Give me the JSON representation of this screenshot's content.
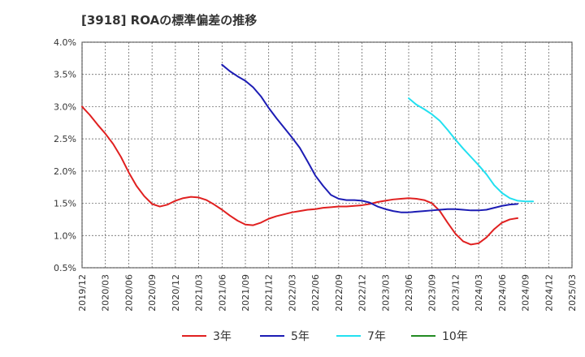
{
  "chart_data": {
    "type": "line",
    "title": "[3918]  ROAの標準偏差の推移",
    "xlabel": "",
    "ylabel": "",
    "ylim": [
      0.5,
      4.0
    ],
    "yticks": [
      0.5,
      1.0,
      1.5,
      2.0,
      2.5,
      3.0,
      3.5,
      4.0
    ],
    "ytick_labels": [
      "0.5%",
      "1.0%",
      "1.5%",
      "2.0%",
      "2.5%",
      "3.0%",
      "3.5%",
      "4.0%"
    ],
    "xticks": [
      "2019/12",
      "2020/03",
      "2020/06",
      "2020/09",
      "2020/12",
      "2021/03",
      "2021/06",
      "2021/09",
      "2021/12",
      "2022/03",
      "2022/06",
      "2022/09",
      "2022/12",
      "2023/03",
      "2023/06",
      "2023/09",
      "2023/12",
      "2024/03",
      "2024/06",
      "2024/09",
      "2024/12",
      "2025/03"
    ],
    "grid": true,
    "legend_position": "bottom",
    "series": [
      {
        "name": "3年",
        "color": "#e02020",
        "start_index": 0,
        "values": [
          3.0,
          2.87,
          2.72,
          2.58,
          2.42,
          2.22,
          1.98,
          1.77,
          1.61,
          1.49,
          1.45,
          1.48,
          1.54,
          1.58,
          1.6,
          1.59,
          1.55,
          1.48,
          1.4,
          1.31,
          1.23,
          1.17,
          1.16,
          1.2,
          1.26,
          1.3,
          1.33,
          1.36,
          1.38,
          1.4,
          1.41,
          1.43,
          1.44,
          1.45,
          1.45,
          1.46,
          1.47,
          1.49,
          1.52,
          1.54,
          1.56,
          1.57,
          1.58,
          1.57,
          1.55,
          1.5,
          1.38,
          1.2,
          1.03,
          0.91,
          0.86,
          0.88,
          0.97,
          1.1,
          1.2,
          1.25,
          1.27
        ]
      },
      {
        "name": "5年",
        "color": "#1c1cb4",
        "start_index": 18,
        "values": [
          3.65,
          3.55,
          3.47,
          3.4,
          3.3,
          3.16,
          2.98,
          2.82,
          2.67,
          2.52,
          2.36,
          2.15,
          1.93,
          1.77,
          1.63,
          1.57,
          1.55,
          1.55,
          1.54,
          1.51,
          1.45,
          1.41,
          1.38,
          1.36,
          1.36,
          1.37,
          1.38,
          1.39,
          1.4,
          1.41,
          1.41,
          1.4,
          1.39,
          1.39,
          1.4,
          1.43,
          1.46,
          1.48,
          1.49
        ]
      },
      {
        "name": "7年",
        "color": "#22e0f0",
        "start_index": 42,
        "values": [
          3.13,
          3.03,
          2.96,
          2.88,
          2.78,
          2.64,
          2.49,
          2.35,
          2.22,
          2.09,
          1.95,
          1.78,
          1.66,
          1.58,
          1.54,
          1.53,
          1.53
        ]
      },
      {
        "name": "10年",
        "color": "#228b22",
        "start_index": 0,
        "values": []
      }
    ]
  }
}
